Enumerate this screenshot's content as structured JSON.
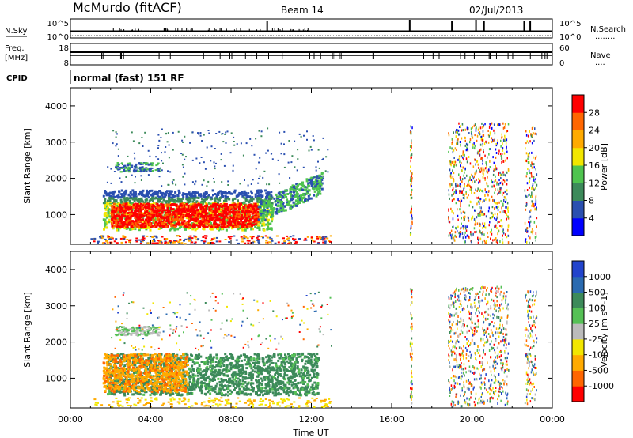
{
  "header": {
    "station": "McMurdo (fitACF)",
    "beam": "Beam 14",
    "date": "02/Jul/2013"
  },
  "strip_labels": {
    "nsky": "N.Sky",
    "nsearch": "N.Search",
    "nsearch_dots": "........",
    "freq_top": "Freq.",
    "freq_unit": "[MHz]",
    "nave": "Nave",
    "nave_dots": "....",
    "cpid": "CPID",
    "cpid_value": "normal (fast) 151 RF",
    "noise_ticks": [
      "10^5",
      "10^0"
    ],
    "noise_ticks_right": [
      "10^5",
      "10^0"
    ],
    "freq_ticks": [
      "18",
      "8"
    ],
    "nave_ticks": [
      "60",
      "0"
    ]
  },
  "colors": {
    "power": [
      "#0000ff",
      "#2a4fb0",
      "#3c8a5a",
      "#4fc44f",
      "#f2e600",
      "#ffaa00",
      "#ff6600",
      "#ff0000"
    ],
    "velocity": [
      "#2244cc",
      "#2a6ab0",
      "#3c8a5a",
      "#55c055",
      "#bbbbbb",
      "#f2e600",
      "#ffaa00",
      "#ff6600",
      "#ff0000"
    ]
  },
  "chart_data": [
    {
      "type": "heatmap",
      "title": "Power",
      "ylabel": "Slant Range [km]",
      "xlabel": "Time UT",
      "ylim": [
        180,
        4500
      ],
      "xlim_hours": [
        0,
        24
      ],
      "x_ticks": [
        "00:00",
        "04:00",
        "08:00",
        "12:00",
        "16:00",
        "20:00",
        "00:00"
      ],
      "y_ticks": [
        1000,
        2000,
        3000,
        4000
      ],
      "colorbar": {
        "label": "Power [dB]",
        "ticks": [
          "4",
          "8",
          "12",
          "16",
          "20",
          "24",
          "28"
        ],
        "range": [
          0,
          30
        ]
      },
      "regions": [
        {
          "t": [
            2.0,
            9.3
          ],
          "r": [
            700,
            1500
          ],
          "level": "high",
          "value_db": 28
        },
        {
          "t": [
            1.5,
            10.0
          ],
          "r": [
            550,
            1800
          ],
          "level": "mid",
          "value_db": 14
        },
        {
          "t": [
            9.3,
            10.8
          ],
          "r": [
            800,
            1400
          ],
          "level": "mid",
          "value_db": 14
        },
        {
          "t": [
            10.8,
            12.5
          ],
          "r": [
            1300,
            1900
          ],
          "level": "low",
          "value_db": 6
        },
        {
          "t": [
            2.2,
            4.4
          ],
          "r": [
            2200,
            2400
          ],
          "level": "low",
          "value_db": 8
        },
        {
          "t": [
            19.0,
            21.0
          ],
          "r": [
            200,
            3500
          ],
          "level": "sparse",
          "value_db": 16
        }
      ]
    },
    {
      "type": "heatmap",
      "title": "Velocity",
      "ylabel": "Slant Range [km]",
      "xlabel": "Time UT",
      "ylim": [
        180,
        4500
      ],
      "xlim_hours": [
        0,
        24
      ],
      "x_ticks": [
        "00:00",
        "04:00",
        "08:00",
        "12:00",
        "16:00",
        "20:00",
        "00:00"
      ],
      "y_ticks": [
        1000,
        2000,
        3000,
        4000
      ],
      "colorbar": {
        "label": "Velocity [m s^-1]",
        "ticks": [
          "1000",
          "500",
          "100",
          "25",
          "-25",
          "-100",
          "-500",
          "-1000"
        ]
      },
      "regions": [
        {
          "t": [
            2.0,
            12.5
          ],
          "r": [
            550,
            1800
          ],
          "value_ms": 100
        },
        {
          "t": [
            1.5,
            5.5
          ],
          "r": [
            700,
            1700
          ],
          "value_ms": -100
        },
        {
          "t": [
            2.2,
            4.4
          ],
          "r": [
            2200,
            2400
          ],
          "value_ms": 25
        },
        {
          "t": [
            19.0,
            21.0
          ],
          "r": [
            200,
            3500
          ],
          "value_ms": 0
        }
      ]
    }
  ]
}
